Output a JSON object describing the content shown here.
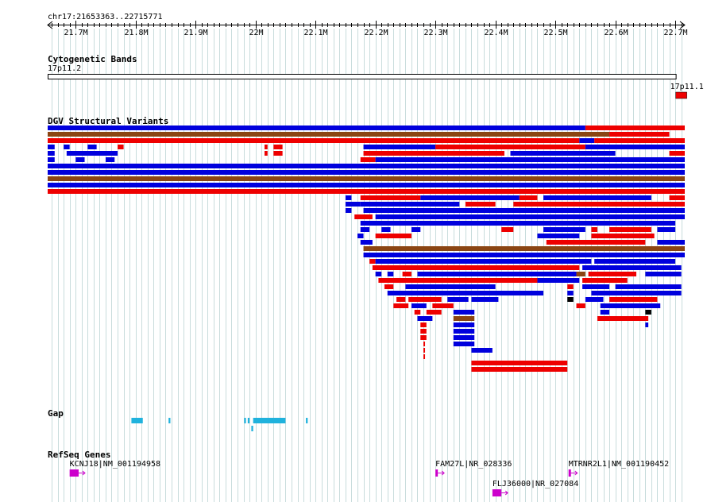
{
  "view": {
    "region_label": "chr17:21653363..22715771",
    "region_start": 21653363,
    "region_end": 22715771
  },
  "ruler": {
    "ticks": [
      {
        "pos": 21700000,
        "label": "21.7M"
      },
      {
        "pos": 21800000,
        "label": "21.8M"
      },
      {
        "pos": 21900000,
        "label": "21.9M"
      },
      {
        "pos": 22000000,
        "label": "22M"
      },
      {
        "pos": 22100000,
        "label": "22.1M"
      },
      {
        "pos": 22200000,
        "label": "22.2M"
      },
      {
        "pos": 22300000,
        "label": "22.3M"
      },
      {
        "pos": 22400000,
        "label": "22.4M"
      },
      {
        "pos": 22500000,
        "label": "22.5M"
      },
      {
        "pos": 22600000,
        "label": "22.6M"
      },
      {
        "pos": 22700000,
        "label": "22.7M"
      }
    ]
  },
  "tracks": {
    "cytobands": {
      "title": "Cytogenetic Bands",
      "bands": [
        {
          "name": "17p11.2",
          "start": 21653363,
          "end": 22702000,
          "color": "#ffffff"
        },
        {
          "name": "17p11.1",
          "start": 22702000,
          "end": 22715771,
          "color": "#ee0000"
        }
      ]
    },
    "dgv": {
      "title": "DGV Structural Variants",
      "colors": {
        "gain": "#ee0000",
        "loss": "#0000dd",
        "both": "#8b4513",
        "other": "#000000"
      },
      "rows": [
        [
          {
            "s": 21653363,
            "e": 22550000,
            "t": "loss"
          },
          {
            "s": 22550000,
            "e": 22715771,
            "t": "gain"
          }
        ],
        [
          {
            "s": 21653363,
            "e": 22590000,
            "t": "both"
          },
          {
            "s": 22590000,
            "e": 22690000,
            "t": "gain"
          }
        ],
        [
          {
            "s": 21653363,
            "e": 22540000,
            "t": "gain"
          },
          {
            "s": 22540000,
            "e": 22565000,
            "t": "loss"
          },
          {
            "s": 22565000,
            "e": 22715771,
            "t": "gain"
          }
        ],
        [
          {
            "s": 21653363,
            "e": 21665000,
            "t": "loss"
          },
          {
            "s": 21680000,
            "e": 21690000,
            "t": "loss"
          },
          {
            "s": 21720000,
            "e": 21735000,
            "t": "loss"
          },
          {
            "s": 21770000,
            "e": 21780000,
            "t": "gain"
          },
          {
            "s": 22015000,
            "e": 22020000,
            "t": "gain"
          },
          {
            "s": 22030000,
            "e": 22045000,
            "t": "gain"
          },
          {
            "s": 22180000,
            "e": 22300000,
            "t": "loss"
          },
          {
            "s": 22300000,
            "e": 22550000,
            "t": "gain"
          },
          {
            "s": 22550000,
            "e": 22715771,
            "t": "loss"
          }
        ],
        [
          {
            "s": 21653363,
            "e": 21665000,
            "t": "loss"
          },
          {
            "s": 21685000,
            "e": 21770000,
            "t": "loss"
          },
          {
            "s": 22015000,
            "e": 22020000,
            "t": "gain"
          },
          {
            "s": 22030000,
            "e": 22045000,
            "t": "gain"
          },
          {
            "s": 22180000,
            "e": 22415000,
            "t": "gain"
          },
          {
            "s": 22425000,
            "e": 22600000,
            "t": "loss"
          },
          {
            "s": 22690000,
            "e": 22715771,
            "t": "gain"
          }
        ],
        [
          {
            "s": 21653363,
            "e": 21665000,
            "t": "loss"
          },
          {
            "s": 21700000,
            "e": 21715000,
            "t": "loss"
          },
          {
            "s": 21750000,
            "e": 21765000,
            "t": "loss"
          },
          {
            "s": 22175000,
            "e": 22200000,
            "t": "gain"
          },
          {
            "s": 22200000,
            "e": 22715771,
            "t": "loss"
          }
        ],
        [
          {
            "s": 21653363,
            "e": 22715771,
            "t": "loss"
          }
        ],
        [
          {
            "s": 21653363,
            "e": 22715771,
            "t": "loss"
          }
        ],
        [
          {
            "s": 21653363,
            "e": 22715771,
            "t": "both"
          }
        ],
        [
          {
            "s": 21653363,
            "e": 22715771,
            "t": "loss"
          }
        ],
        [
          {
            "s": 21653363,
            "e": 22715771,
            "t": "gain"
          }
        ],
        [
          {
            "s": 22150000,
            "e": 22160000,
            "t": "loss"
          },
          {
            "s": 22175000,
            "e": 22275000,
            "t": "gain"
          },
          {
            "s": 22275000,
            "e": 22440000,
            "t": "loss"
          },
          {
            "s": 22440000,
            "e": 22470000,
            "t": "gain"
          },
          {
            "s": 22480000,
            "e": 22660000,
            "t": "loss"
          },
          {
            "s": 22690000,
            "e": 22715771,
            "t": "gain"
          }
        ],
        [
          {
            "s": 22150000,
            "e": 22175000,
            "t": "loss"
          },
          {
            "s": 22175000,
            "e": 22340000,
            "t": "loss"
          },
          {
            "s": 22350000,
            "e": 22400000,
            "t": "gain"
          },
          {
            "s": 22430000,
            "e": 22715771,
            "t": "gain"
          }
        ],
        [
          {
            "s": 22150000,
            "e": 22160000,
            "t": "loss"
          },
          {
            "s": 22180000,
            "e": 22715771,
            "t": "loss"
          }
        ],
        [
          {
            "s": 22165000,
            "e": 22195000,
            "t": "gain"
          },
          {
            "s": 22200000,
            "e": 22715771,
            "t": "loss"
          }
        ],
        [
          {
            "s": 22175000,
            "e": 22700000,
            "t": "loss"
          }
        ],
        [
          {
            "s": 22175000,
            "e": 22190000,
            "t": "loss"
          },
          {
            "s": 22210000,
            "e": 22225000,
            "t": "loss"
          },
          {
            "s": 22260000,
            "e": 22275000,
            "t": "loss"
          },
          {
            "s": 22410000,
            "e": 22430000,
            "t": "gain"
          },
          {
            "s": 22480000,
            "e": 22550000,
            "t": "loss"
          },
          {
            "s": 22560000,
            "e": 22570000,
            "t": "gain"
          },
          {
            "s": 22590000,
            "e": 22660000,
            "t": "gain"
          },
          {
            "s": 22670000,
            "e": 22700000,
            "t": "loss"
          }
        ],
        [
          {
            "s": 22170000,
            "e": 22180000,
            "t": "loss"
          },
          {
            "s": 22200000,
            "e": 22260000,
            "t": "gain"
          },
          {
            "s": 22470000,
            "e": 22540000,
            "t": "loss"
          },
          {
            "s": 22560000,
            "e": 22665000,
            "t": "gain"
          }
        ],
        [
          {
            "s": 22175000,
            "e": 22195000,
            "t": "loss"
          },
          {
            "s": 22485000,
            "e": 22650000,
            "t": "gain"
          },
          {
            "s": 22670000,
            "e": 22715771,
            "t": "loss"
          }
        ],
        [
          {
            "s": 22180000,
            "e": 22715771,
            "t": "both"
          }
        ],
        [
          {
            "s": 22180000,
            "e": 22715771,
            "t": "loss"
          }
        ],
        [
          {
            "s": 22190000,
            "e": 22200000,
            "t": "gain"
          },
          {
            "s": 22200000,
            "e": 22560000,
            "t": "loss"
          },
          {
            "s": 22565000,
            "e": 22700000,
            "t": "loss"
          }
        ],
        [
          {
            "s": 22195000,
            "e": 22540000,
            "t": "gain"
          },
          {
            "s": 22545000,
            "e": 22710000,
            "t": "loss"
          }
        ],
        [
          {
            "s": 22200000,
            "e": 22210000,
            "t": "loss"
          },
          {
            "s": 22220000,
            "e": 22230000,
            "t": "loss"
          },
          {
            "s": 22245000,
            "e": 22260000,
            "t": "gain"
          },
          {
            "s": 22270000,
            "e": 22535000,
            "t": "loss"
          },
          {
            "s": 22535000,
            "e": 22550000,
            "t": "both"
          },
          {
            "s": 22555000,
            "e": 22635000,
            "t": "gain"
          },
          {
            "s": 22650000,
            "e": 22710000,
            "t": "loss"
          }
        ],
        [
          {
            "s": 22205000,
            "e": 22470000,
            "t": "gain"
          },
          {
            "s": 22470000,
            "e": 22540000,
            "t": "loss"
          },
          {
            "s": 22545000,
            "e": 22620000,
            "t": "gain"
          }
        ],
        [
          {
            "s": 22215000,
            "e": 22230000,
            "t": "gain"
          },
          {
            "s": 22250000,
            "e": 22400000,
            "t": "loss"
          },
          {
            "s": 22520000,
            "e": 22530000,
            "t": "gain"
          },
          {
            "s": 22545000,
            "e": 22590000,
            "t": "loss"
          },
          {
            "s": 22600000,
            "e": 22710000,
            "t": "loss"
          }
        ],
        [
          {
            "s": 22220000,
            "e": 22480000,
            "t": "loss"
          },
          {
            "s": 22520000,
            "e": 22530000,
            "t": "loss"
          },
          {
            "s": 22560000,
            "e": 22710000,
            "t": "loss"
          }
        ],
        [
          {
            "s": 22235000,
            "e": 22250000,
            "t": "gain"
          },
          {
            "s": 22255000,
            "e": 22310000,
            "t": "gain"
          },
          {
            "s": 22320000,
            "e": 22355000,
            "t": "loss"
          },
          {
            "s": 22360000,
            "e": 22405000,
            "t": "loss"
          },
          {
            "s": 22520000,
            "e": 22530000,
            "t": "other"
          },
          {
            "s": 22550000,
            "e": 22580000,
            "t": "loss"
          },
          {
            "s": 22590000,
            "e": 22670000,
            "t": "gain"
          }
        ],
        [
          {
            "s": 22230000,
            "e": 22255000,
            "t": "gain"
          },
          {
            "s": 22260000,
            "e": 22285000,
            "t": "loss"
          },
          {
            "s": 22295000,
            "e": 22330000,
            "t": "gain"
          },
          {
            "s": 22535000,
            "e": 22550000,
            "t": "gain"
          },
          {
            "s": 22575000,
            "e": 22675000,
            "t": "loss"
          }
        ],
        [
          {
            "s": 22265000,
            "e": 22275000,
            "t": "gain"
          },
          {
            "s": 22285000,
            "e": 22310000,
            "t": "gain"
          },
          {
            "s": 22330000,
            "e": 22365000,
            "t": "loss"
          },
          {
            "s": 22575000,
            "e": 22590000,
            "t": "loss"
          },
          {
            "s": 22650000,
            "e": 22660000,
            "t": "other"
          }
        ],
        [
          {
            "s": 22270000,
            "e": 22295000,
            "t": "loss"
          },
          {
            "s": 22330000,
            "e": 22365000,
            "t": "both"
          },
          {
            "s": 22570000,
            "e": 22655000,
            "t": "gain"
          }
        ],
        [
          {
            "s": 22275000,
            "e": 22285000,
            "t": "gain"
          },
          {
            "s": 22330000,
            "e": 22365000,
            "t": "loss"
          },
          {
            "s": 22650000,
            "e": 22655000,
            "t": "loss"
          }
        ],
        [
          {
            "s": 22275000,
            "e": 22285000,
            "t": "gain"
          },
          {
            "s": 22330000,
            "e": 22365000,
            "t": "loss"
          }
        ],
        [
          {
            "s": 22275000,
            "e": 22285000,
            "t": "gain"
          },
          {
            "s": 22330000,
            "e": 22365000,
            "t": "loss"
          }
        ],
        [
          {
            "s": 22280000,
            "e": 22282000,
            "t": "gain"
          },
          {
            "s": 22330000,
            "e": 22365000,
            "t": "loss"
          }
        ],
        [
          {
            "s": 22280000,
            "e": 22282000,
            "t": "gain"
          },
          {
            "s": 22360000,
            "e": 22395000,
            "t": "loss"
          }
        ],
        [
          {
            "s": 22280000,
            "e": 22282000,
            "t": "gain"
          }
        ],
        [
          {
            "s": 22360000,
            "e": 22520000,
            "t": "gain"
          }
        ],
        [
          {
            "s": 22360000,
            "e": 22520000,
            "t": "gain"
          }
        ]
      ]
    },
    "gap": {
      "title": "Gap",
      "color": "#20b2dd",
      "rows": [
        [
          {
            "s": 21793000,
            "e": 21812000
          },
          {
            "s": 21855000,
            "e": 21858000
          },
          {
            "s": 21981000,
            "e": 21984000
          },
          {
            "s": 21987000,
            "e": 21990000
          },
          {
            "s": 21996000,
            "e": 22050000
          },
          {
            "s": 22084000,
            "e": 22087000
          }
        ],
        [
          {
            "s": 21993000,
            "e": 21996000
          }
        ]
      ]
    },
    "refseq": {
      "title": "RefSeq Genes",
      "color": "#cc00cc",
      "genes": [
        {
          "label": "KCNJ18|NM_001194958",
          "start": 21690000,
          "end": 21705000,
          "row": 0
        },
        {
          "label": "FAM27L|NR_028336",
          "start": 22300000,
          "end": 22304000,
          "row": 0
        },
        {
          "label": "MTRNR2L1|NM_001190452",
          "start": 22522000,
          "end": 22526000,
          "row": 0
        },
        {
          "label": "FLJ36000|NR_027084",
          "start": 22395000,
          "end": 22410000,
          "row": 1
        }
      ]
    }
  }
}
